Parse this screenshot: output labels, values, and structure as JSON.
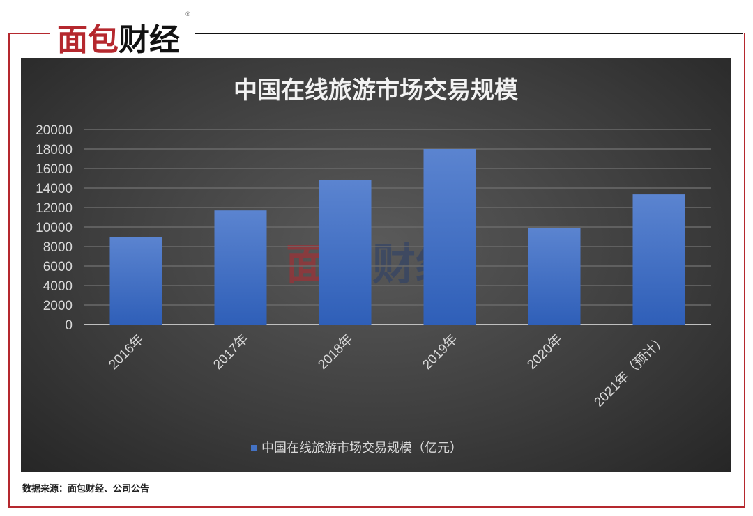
{
  "brand": {
    "logo_text": "面包财经",
    "watermark_text": "面包财经"
  },
  "chart_data": {
    "type": "bar",
    "title": "中国在线旅游市场交易规模",
    "categories": [
      "2016年",
      "2017年",
      "2018年",
      "2019年",
      "2020年",
      "2021年（预计）"
    ],
    "series": [
      {
        "name": "中国在线旅游市场交易规模（亿元）",
        "values": [
          9000,
          11700,
          14800,
          18000,
          9900,
          13350
        ],
        "color": "#4472c4"
      }
    ],
    "xlabel": "",
    "ylabel": "",
    "ylim": [
      0,
      20000
    ],
    "yticks": [
      0,
      2000,
      4000,
      6000,
      8000,
      10000,
      12000,
      14000,
      16000,
      18000,
      20000
    ],
    "grid": true,
    "legend": "bottom"
  },
  "footer": {
    "source": "数据来源：面包财经、公司公告"
  }
}
